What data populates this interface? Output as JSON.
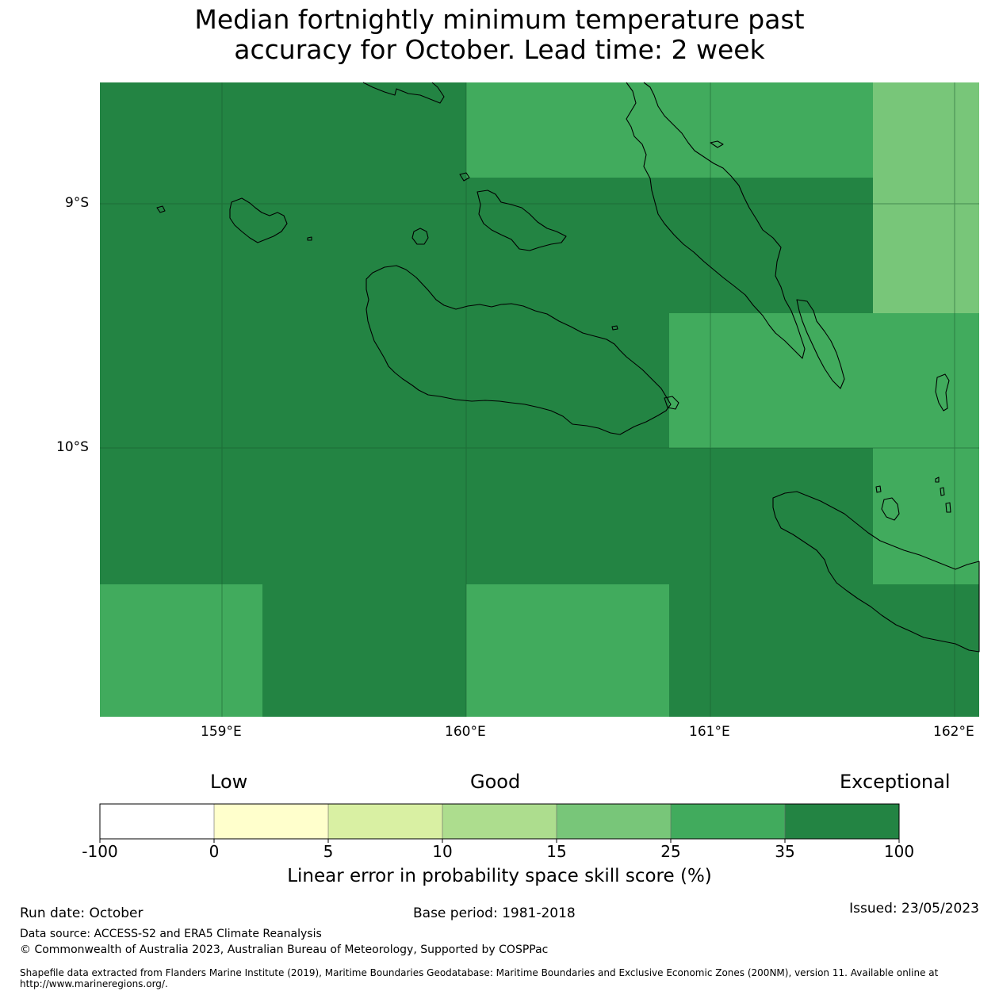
{
  "title_line1": "Median fortnightly minimum temperature past",
  "title_line2": "accuracy for October. Lead time: 2 week",
  "axes": {
    "lat_labels": [
      "9°S",
      "10°S"
    ],
    "lon_labels": [
      "159°E",
      "160°E",
      "161°E",
      "162°E"
    ]
  },
  "colors": {
    "c_neg100_0": "#ffffff",
    "c_0_5": "#ffffcc",
    "c_5_10": "#d9f0a3",
    "c_10_15": "#addd8e",
    "c_15_25": "#78c679",
    "c_25_35": "#41ab5d",
    "c_35_100": "#238443"
  },
  "legend": {
    "low": "Low",
    "good": "Good",
    "exceptional": "Exceptional",
    "ticks": [
      "-100",
      "0",
      "5",
      "10",
      "15",
      "25",
      "35",
      "100"
    ],
    "title": "Linear error in probability space skill score (%)"
  },
  "footer": {
    "run_date": "Run date: October",
    "base_period": "Base period: 1981-2018",
    "issued": "Issued: 23/05/2023",
    "data_source": "Data source: ACCESS-S2 and ERA5 Climate Reanalysis",
    "copyright": "© Commonwealth of Australia 2023, Australian Bureau of Meteorology, Supported by COSPPac",
    "shapefile": "Shapefile data extracted from Flanders Marine Institute (2019), Maritime Boundaries Geodatabase: Maritime Boundaries and Exclusive Economic Zones (200NM), version 11. Available online at http://www.marineregions.org/."
  }
}
